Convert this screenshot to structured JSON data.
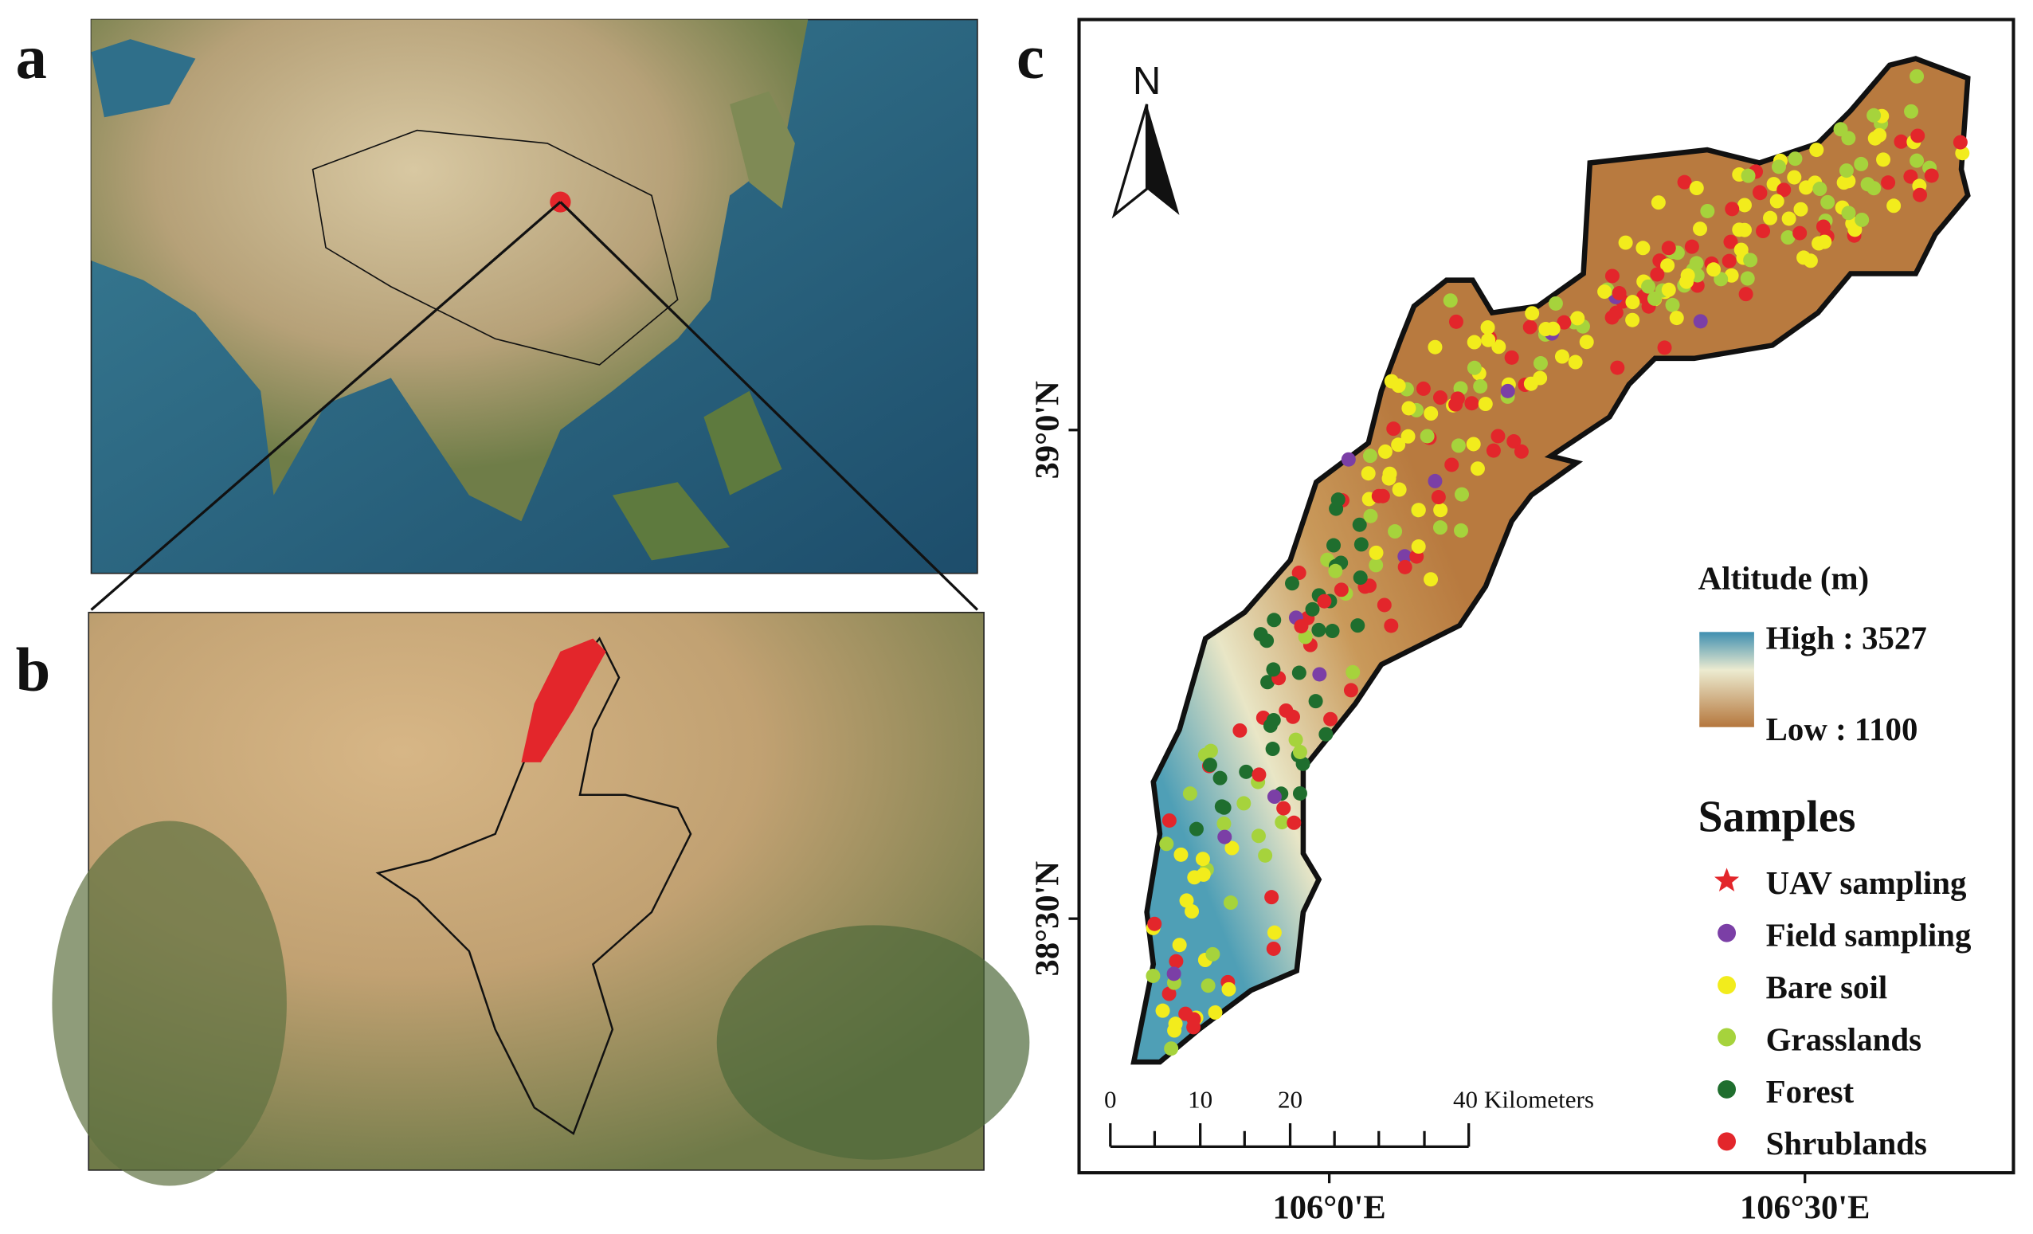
{
  "panels": {
    "a": {
      "label": "a"
    },
    "b": {
      "label": "b"
    },
    "c": {
      "label": "c",
      "north_arrow": "N",
      "lat_labels": [
        "39°0'N",
        "38°30'N"
      ],
      "lon_labels": [
        "106°0'E",
        "106°30'E"
      ],
      "scale_bar": [
        "0",
        "10",
        "20",
        "40 Kilometers"
      ],
      "altitude_legend": {
        "title": "Altitude (m)",
        "high": "High : 3527",
        "low": "Low : 1100"
      },
      "samples_legend": {
        "title": "Samples",
        "items": [
          {
            "label": "UAV sampling",
            "color": "#e3262b",
            "symbol": "star"
          },
          {
            "label": "Field sampling",
            "color": "#7b3fa6",
            "symbol": "dot"
          },
          {
            "label": "Bare soil",
            "color": "#f2ec1c",
            "symbol": "dot"
          },
          {
            "label": "Grasslands",
            "color": "#a6d33c",
            "symbol": "dot"
          },
          {
            "label": "Forest",
            "color": "#1f6e2e",
            "symbol": "dot"
          },
          {
            "label": "Shrublands",
            "color": "#e3262b",
            "symbol": "dot"
          }
        ]
      }
    }
  }
}
